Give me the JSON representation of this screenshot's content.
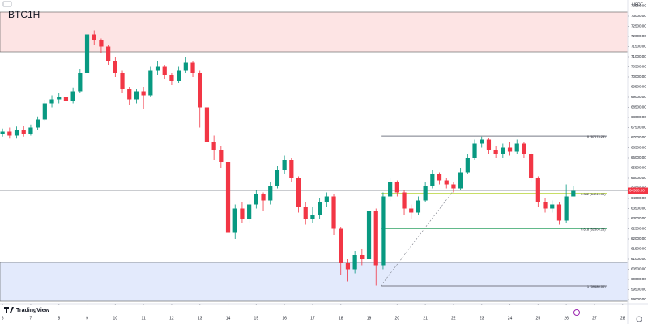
{
  "chart_data": {
    "type": "candlestick",
    "title": "BTC1H",
    "brand": "TradingView",
    "currency": "USDT",
    "x": [
      6,
      6.25,
      6.5,
      6.75,
      7,
      7.25,
      7.5,
      7.75,
      8,
      8.25,
      8.5,
      8.75,
      9,
      9.25,
      9.5,
      9.75,
      10,
      10.25,
      10.5,
      10.75,
      11,
      11.25,
      11.5,
      11.75,
      12,
      12.25,
      12.5,
      12.75,
      13,
      13.25,
      13.5,
      13.75,
      14,
      14.25,
      14.5,
      14.75,
      15,
      15.25,
      15.5,
      15.75,
      16,
      16.25,
      16.5,
      16.75,
      17,
      17.25,
      17.5,
      17.75,
      18,
      18.25,
      18.5,
      18.75,
      19,
      19.25,
      19.5,
      19.75,
      20,
      20.25,
      20.5,
      20.75,
      21,
      21.25,
      21.5,
      21.75,
      22,
      22.25,
      22.5,
      22.75,
      23,
      23.25,
      23.5,
      23.75,
      24,
      24.25,
      24.5,
      24.75,
      25,
      25.25,
      25.5,
      25.75,
      26,
      26.25
    ],
    "open": [
      67200,
      67300,
      67100,
      67400,
      67200,
      67500,
      67900,
      68700,
      68900,
      69000,
      68800,
      69300,
      70200,
      72100,
      71800,
      71500,
      70800,
      70200,
      69400,
      68900,
      69300,
      69100,
      70300,
      70500,
      70100,
      69800,
      70300,
      70700,
      70200,
      68500,
      66800,
      66400,
      65800,
      62300,
      63500,
      63000,
      63700,
      64200,
      63900,
      64600,
      65400,
      65900,
      65000,
      63600,
      63000,
      63200,
      63800,
      64100,
      62500,
      60800,
      60500,
      61200,
      61000,
      63400,
      60700,
      64100,
      64800,
      64300,
      63500,
      63300,
      63900,
      64600,
      65200,
      64900,
      64700,
      64500,
      65300,
      66000,
      66700,
      66900,
      66400,
      66200,
      66500,
      66300,
      66700,
      66200,
      65000,
      63800,
      63500,
      63700,
      62900,
      64100
    ],
    "high": [
      67450,
      67500,
      67550,
      67600,
      67650,
      68050,
      68850,
      69100,
      69200,
      69150,
      69450,
      70400,
      72600,
      72300,
      71900,
      71600,
      71000,
      70300,
      69500,
      69400,
      69500,
      70500,
      70800,
      70600,
      70200,
      70500,
      71000,
      70800,
      70300,
      68600,
      67100,
      66600,
      66000,
      63700,
      63800,
      63900,
      64400,
      64300,
      64800,
      65600,
      66100,
      66000,
      65100,
      63800,
      63600,
      64000,
      64300,
      64200,
      62600,
      61000,
      61400,
      61500,
      63600,
      63500,
      64300,
      65000,
      64900,
      64400,
      63700,
      64100,
      64800,
      65400,
      65300,
      65000,
      64800,
      65500,
      66200,
      66900,
      67050,
      67000,
      66600,
      66700,
      66800,
      66900,
      66800,
      66300,
      65100,
      64000,
      63900,
      63800,
      64700,
      64600
    ],
    "low": [
      67050,
      66950,
      66950,
      67050,
      67100,
      67400,
      67800,
      68500,
      68700,
      68600,
      68700,
      69200,
      70100,
      71600,
      71200,
      70600,
      70000,
      69200,
      68600,
      68700,
      68400,
      69000,
      70100,
      69900,
      69600,
      69700,
      70200,
      70000,
      67500,
      66600,
      65900,
      65500,
      61000,
      62000,
      62800,
      62800,
      63500,
      63400,
      63700,
      64500,
      65200,
      64800,
      63300,
      62700,
      62800,
      63000,
      63600,
      62200,
      60200,
      59900,
      60300,
      60700,
      60900,
      59700,
      60500,
      63900,
      64100,
      63200,
      63000,
      63200,
      63800,
      64500,
      64700,
      64500,
      64300,
      64400,
      65200,
      65900,
      66500,
      66200,
      66000,
      66000,
      66100,
      66200,
      66000,
      64800,
      63600,
      63300,
      63300,
      62700,
      62800,
      64100
    ],
    "close": [
      67300,
      67100,
      67400,
      67200,
      67500,
      67900,
      68700,
      68900,
      69000,
      68800,
      69300,
      70200,
      72100,
      71800,
      71500,
      70800,
      70200,
      69400,
      68900,
      69300,
      69100,
      70300,
      70500,
      70100,
      69800,
      70300,
      70700,
      70200,
      68500,
      66800,
      66400,
      65800,
      62300,
      63500,
      63000,
      63700,
      64200,
      63900,
      64600,
      65400,
      65900,
      65000,
      63600,
      63000,
      63200,
      63800,
      64100,
      62500,
      60800,
      60500,
      61200,
      61000,
      63400,
      60700,
      64100,
      64800,
      64300,
      63500,
      63300,
      63900,
      64600,
      65200,
      64900,
      64700,
      64500,
      65300,
      66000,
      66700,
      66900,
      66400,
      66200,
      66500,
      66300,
      66700,
      66200,
      65000,
      63800,
      63500,
      63700,
      62900,
      64100,
      64380
    ],
    "up_color": "#089981",
    "down_color": "#f23645",
    "current_price": {
      "value": 64380,
      "label": "64380.00"
    },
    "zones": [
      {
        "from": 71240,
        "to": 73200,
        "color": "#fde4e4"
      },
      {
        "from": 58920,
        "to": 60840,
        "color": "#e3eafc"
      }
    ],
    "fib": {
      "x_start": 19.42,
      "x_end": 27.45,
      "levels": [
        {
          "value": 67073,
          "label": "0 (67073.25)",
          "color": "#787b86"
        },
        {
          "value": 64249,
          "label": "0.382 (64249.00)",
          "color": "#b5d334"
        },
        {
          "value": 62504,
          "label": "0.618 (62504.25)",
          "color": "#4caf79"
        },
        {
          "value": 59680,
          "label": "1 (59680.00)",
          "color": "#787b86"
        }
      ],
      "trend": {
        "x": [
          19.42,
          21.95
        ],
        "y": [
          59680,
          64300
        ]
      }
    },
    "xlim": [
      5.91,
      28.18
    ],
    "xticks": [
      6,
      7,
      8,
      9,
      10,
      11,
      12,
      13,
      14,
      15,
      16,
      17,
      18,
      19,
      20,
      21,
      22,
      23,
      24,
      25,
      26,
      27,
      28
    ],
    "ylim": [
      58800,
      73800
    ],
    "yticks": [
      {
        "value": 59000,
        "label": "59000.00"
      },
      {
        "value": 59500,
        "label": "59500.00"
      },
      {
        "value": 60000,
        "label": "60000.00"
      },
      {
        "value": 60500,
        "label": "60500.00"
      },
      {
        "value": 61000,
        "label": "61000.00"
      },
      {
        "value": 61500,
        "label": "61500.00"
      },
      {
        "value": 62000,
        "label": "62000.00"
      },
      {
        "value": 62500,
        "label": "62500.00"
      },
      {
        "value": 63000,
        "label": "63000.00"
      },
      {
        "value": 63500,
        "label": "63500.00"
      },
      {
        "value": 64000,
        "label": "64000.00"
      },
      {
        "value": 64500,
        "label": "64500.00"
      },
      {
        "value": 65000,
        "label": "65000.00"
      },
      {
        "value": 65500,
        "label": "65500.00"
      },
      {
        "value": 66000,
        "label": "66000.00"
      },
      {
        "value": 66500,
        "label": "66500.00"
      },
      {
        "value": 67000,
        "label": "67000.00"
      },
      {
        "value": 67500,
        "label": "67500.00"
      },
      {
        "value": 68000,
        "label": "68000.00"
      },
      {
        "value": 68500,
        "label": "68500.00"
      },
      {
        "value": 69000,
        "label": "69000.00"
      },
      {
        "value": 69500,
        "label": "69500.00"
      },
      {
        "value": 70000,
        "label": "70000.00"
      },
      {
        "value": 70500,
        "label": "70500.00"
      },
      {
        "value": 71000,
        "label": "71000.00"
      },
      {
        "value": 71500,
        "label": "71500.00"
      },
      {
        "value": 72000,
        "label": "72000.00"
      },
      {
        "value": 72500,
        "label": "72500.00"
      },
      {
        "value": 73000,
        "label": "73000.00"
      },
      {
        "value": 73500,
        "label": "73500.00"
      }
    ]
  }
}
